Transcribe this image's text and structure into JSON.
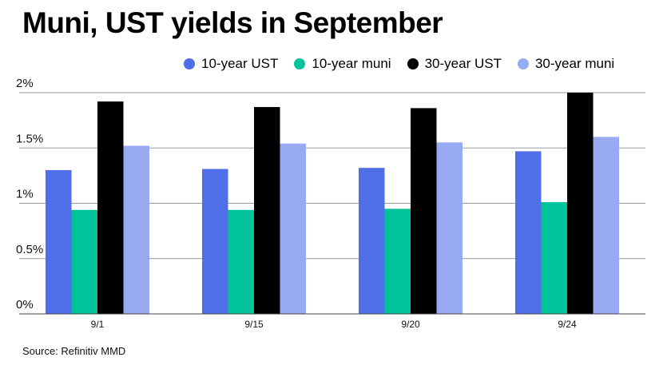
{
  "title": "Muni, UST yields in September",
  "source": "Source: Refinitiv MMD",
  "chart_data": {
    "type": "bar",
    "title": "Muni, UST yields in September",
    "xlabel": "",
    "ylabel": "",
    "categories": [
      "9/1",
      "9/15",
      "9/20",
      "9/24"
    ],
    "series": [
      {
        "name": "10-year UST",
        "color": "#4f6fe8",
        "values": [
          1.3,
          1.31,
          1.32,
          1.47
        ]
      },
      {
        "name": "10-year muni",
        "color": "#00c39a",
        "values": [
          0.94,
          0.94,
          0.95,
          1.01
        ]
      },
      {
        "name": "30-year UST",
        "color": "#000000",
        "values": [
          1.92,
          1.87,
          1.86,
          2.0
        ]
      },
      {
        "name": "30-year muni",
        "color": "#97aaf2",
        "values": [
          1.52,
          1.54,
          1.55,
          1.6
        ]
      }
    ],
    "y_ticks": [
      0,
      0.5,
      1,
      1.5,
      2
    ],
    "y_tick_labels": [
      "0%",
      "0.5%",
      "1%",
      "1.5%",
      "2%"
    ],
    "ylim": [
      0,
      2
    ],
    "grid": true,
    "legend_position": "top"
  }
}
